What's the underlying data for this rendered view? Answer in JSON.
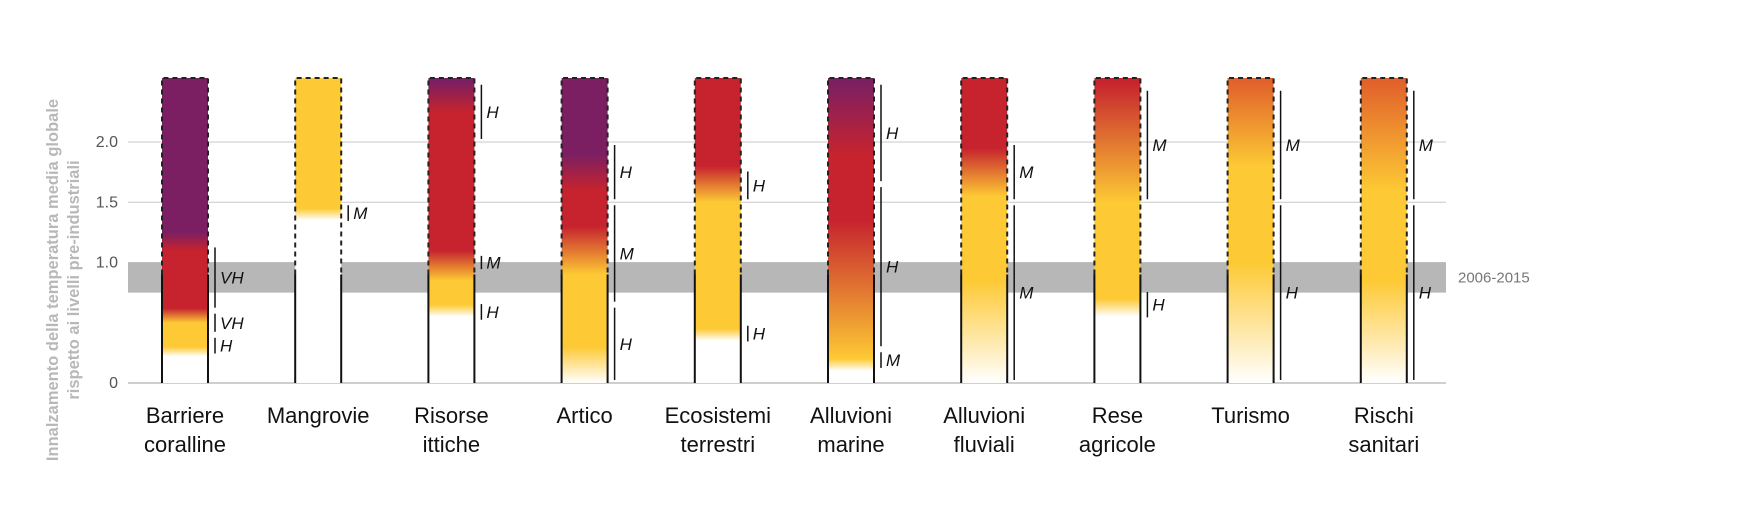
{
  "chart_data": {
    "type": "risk-bars",
    "ylabel": [
      "Innalzamento della temperatura media globale",
      "rispetto ai livelli pre-industriali"
    ],
    "ylim": [
      0,
      2.5
    ],
    "yticks": [
      0,
      1.0,
      1.5,
      2.0
    ],
    "ytick_labels": [
      "0",
      "1.0",
      "1.5",
      "2.0"
    ],
    "grid": true,
    "reference_band": {
      "label": "2006-2015",
      "from": 0.75,
      "to": 1.0
    },
    "palette": {
      "undetectable": "#ffffff",
      "moderate": "#fdc934",
      "high": "#c6232e",
      "very_high": "#7b1f62",
      "axis": "#666666",
      "band": "#b3b3b3"
    },
    "categories": [
      {
        "label": [
          "Barriere",
          "coralline"
        ],
        "stops": [
          [
            0.22,
            "white"
          ],
          [
            0.3,
            "yellow"
          ],
          [
            0.5,
            "yellow"
          ],
          [
            0.62,
            "red"
          ],
          [
            1.1,
            "red"
          ],
          [
            1.25,
            "purple"
          ],
          [
            2.5,
            "purple"
          ]
        ],
        "confidence": [
          [
            0.22,
            0.4,
            "H"
          ],
          [
            0.4,
            0.6,
            "VH"
          ],
          [
            0.6,
            1.15,
            "VH"
          ]
        ]
      },
      {
        "label": [
          "Mangrovie"
        ],
        "stops": [
          [
            1.35,
            "white"
          ],
          [
            1.45,
            "yellow"
          ],
          [
            2.5,
            "yellow"
          ]
        ],
        "confidence": [
          [
            1.32,
            1.5,
            "M"
          ]
        ]
      },
      {
        "label": [
          "Risorse",
          "ittiche"
        ],
        "stops": [
          [
            0.55,
            "white"
          ],
          [
            0.65,
            "yellow"
          ],
          [
            0.85,
            "yellow"
          ],
          [
            1.1,
            "red"
          ],
          [
            2.25,
            "red"
          ],
          [
            2.5,
            "purple"
          ]
        ],
        "confidence": [
          [
            0.5,
            0.68,
            "H"
          ],
          [
            0.92,
            1.08,
            "M"
          ],
          [
            2.0,
            2.5,
            "H"
          ]
        ]
      },
      {
        "label": [
          "Artico"
        ],
        "stops": [
          [
            0.0,
            "white"
          ],
          [
            0.3,
            "yellow"
          ],
          [
            0.9,
            "yellow"
          ],
          [
            1.3,
            "red"
          ],
          [
            1.6,
            "red"
          ],
          [
            1.9,
            "purple"
          ],
          [
            2.5,
            "purple"
          ]
        ],
        "confidence": [
          [
            0.0,
            0.65,
            "H"
          ],
          [
            0.65,
            1.5,
            "M"
          ],
          [
            1.5,
            2.0,
            "H"
          ]
        ]
      },
      {
        "label": [
          "Ecosistemi",
          "terrestri"
        ],
        "stops": [
          [
            0.35,
            "white"
          ],
          [
            0.45,
            "yellow"
          ],
          [
            1.5,
            "yellow"
          ],
          [
            1.8,
            "red"
          ],
          [
            2.5,
            "red"
          ]
        ],
        "confidence": [
          [
            0.32,
            0.5,
            "H"
          ],
          [
            1.5,
            1.78,
            "H"
          ]
        ]
      },
      {
        "label": [
          "Alluvioni",
          "marine"
        ],
        "stops": [
          [
            0.1,
            "white"
          ],
          [
            0.2,
            "yellow"
          ],
          [
            1.35,
            "red"
          ],
          [
            1.9,
            "red"
          ],
          [
            2.5,
            "purple"
          ]
        ],
        "confidence": [
          [
            0.1,
            0.28,
            "M"
          ],
          [
            0.28,
            1.65,
            "H"
          ],
          [
            1.65,
            2.5,
            "H"
          ]
        ]
      },
      {
        "label": [
          "Alluvioni",
          "fluviali"
        ],
        "stops": [
          [
            0.0,
            "white"
          ],
          [
            0.85,
            "yellow"
          ],
          [
            1.55,
            "yellow"
          ],
          [
            1.95,
            "red"
          ],
          [
            2.5,
            "red"
          ]
        ],
        "confidence": [
          [
            0.0,
            1.5,
            "M"
          ],
          [
            1.5,
            2.0,
            "M"
          ]
        ]
      },
      {
        "label": [
          "Rese",
          "agricole"
        ],
        "stops": [
          [
            0.55,
            "white"
          ],
          [
            0.7,
            "yellow"
          ],
          [
            1.5,
            "yellow"
          ],
          [
            2.5,
            "red"
          ]
        ],
        "confidence": [
          [
            0.52,
            0.78,
            "H"
          ],
          [
            1.5,
            2.45,
            "M"
          ]
        ]
      },
      {
        "label": [
          "Turismo"
        ],
        "stops": [
          [
            0.0,
            "white"
          ],
          [
            1.0,
            "yellow"
          ],
          [
            1.8,
            "yellow"
          ],
          [
            2.5,
            "orange"
          ]
        ],
        "confidence": [
          [
            0.0,
            1.5,
            "H"
          ],
          [
            1.5,
            2.45,
            "M"
          ]
        ]
      },
      {
        "label": [
          "Rischi",
          "sanitari"
        ],
        "stops": [
          [
            0.0,
            "white"
          ],
          [
            0.85,
            "yellow"
          ],
          [
            1.6,
            "yellow"
          ],
          [
            2.5,
            "orange"
          ]
        ],
        "confidence": [
          [
            0.0,
            1.5,
            "H"
          ],
          [
            1.5,
            2.45,
            "M"
          ]
        ]
      }
    ]
  }
}
